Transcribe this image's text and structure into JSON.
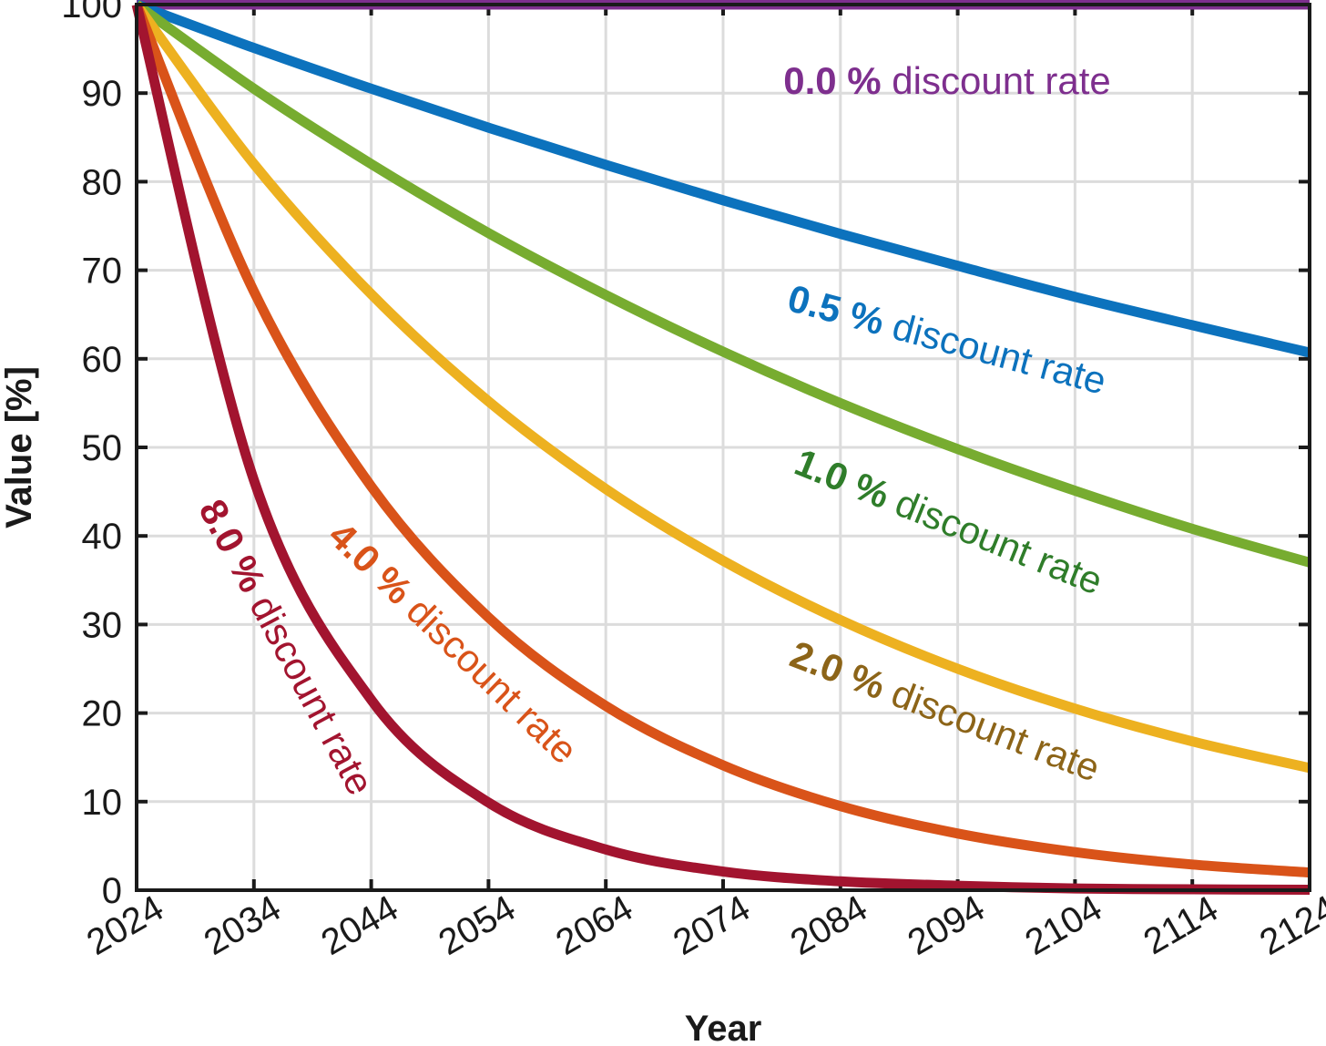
{
  "chart_data": {
    "type": "line",
    "title": "",
    "xlabel": "Year",
    "ylabel": "Value [%]",
    "xlim": [
      2024,
      2124
    ],
    "ylim": [
      0,
      100
    ],
    "x_ticks": [
      2024,
      2034,
      2044,
      2054,
      2064,
      2074,
      2084,
      2094,
      2104,
      2114,
      2124
    ],
    "y_ticks": [
      0,
      10,
      20,
      30,
      40,
      50,
      60,
      70,
      80,
      90,
      100
    ],
    "grid": true,
    "legend": "none (inline labels)",
    "x": [
      2024,
      2034,
      2044,
      2054,
      2064,
      2074,
      2084,
      2094,
      2104,
      2114,
      2124
    ],
    "series": [
      {
        "rate_text": "0.0 %",
        "suffix": " discount rate",
        "color": "#7e2f8e",
        "label_color": "#7e2f8e",
        "values": [
          100,
          100,
          100,
          100,
          100,
          100,
          100,
          100,
          100,
          100,
          100
        ]
      },
      {
        "rate_text": "0.5 %",
        "suffix": " discount rate",
        "color": "#0c72bd",
        "label_color": "#0c72bd",
        "values": [
          100,
          95.1,
          90.5,
          86.1,
          81.9,
          77.9,
          74.1,
          70.5,
          67.0,
          63.8,
          60.7
        ]
      },
      {
        "rate_text": "1.0 %",
        "suffix": " discount rate",
        "color": "#77ac30",
        "label_color": "#2f7d2a",
        "values": [
          100,
          90.5,
          82.0,
          74.2,
          67.2,
          60.8,
          55.0,
          49.8,
          45.1,
          40.8,
          37.0
        ]
      },
      {
        "rate_text": "2.0 %",
        "suffix": " discount rate",
        "color": "#edb120",
        "label_color": "#8c6418",
        "values": [
          100,
          82.0,
          67.3,
          55.2,
          45.3,
          37.2,
          30.5,
          25.0,
          20.5,
          16.8,
          13.8
        ]
      },
      {
        "rate_text": "4.0 %",
        "suffix": " discount rate",
        "color": "#d95319",
        "label_color": "#d95319",
        "values": [
          100,
          67.6,
          45.6,
          30.8,
          20.8,
          14.1,
          9.5,
          6.4,
          4.3,
          2.9,
          2.0
        ]
      },
      {
        "rate_text": "8.0 %",
        "suffix": " discount rate",
        "color": "#a2142f",
        "label_color": "#a2142f",
        "values": [
          100,
          46.3,
          21.5,
          9.9,
          4.6,
          2.1,
          1.0,
          0.5,
          0.2,
          0.1,
          0.05
        ]
      }
    ]
  }
}
